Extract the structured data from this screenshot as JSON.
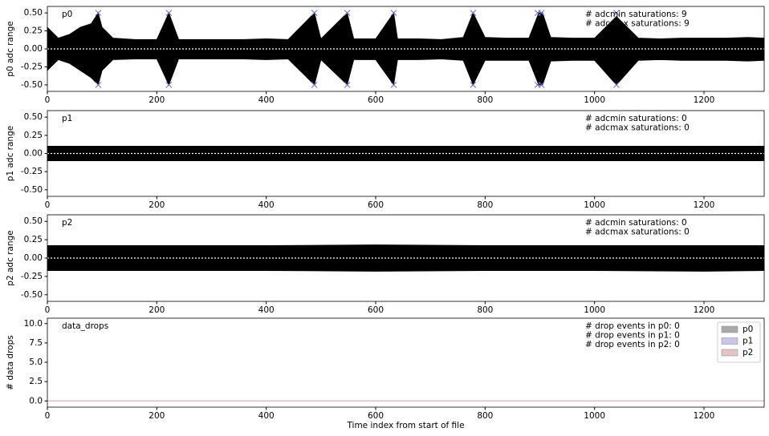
{
  "chart_data": [
    {
      "type": "band",
      "label": "p0",
      "ylabel": "p0 adc range",
      "annotations": [
        "# adcmin saturations: 9",
        "# adcmax saturations: 9"
      ],
      "xlim": [
        0,
        1310
      ],
      "xticks": [
        0,
        200,
        400,
        600,
        800,
        1000,
        1200
      ],
      "ylim": [
        -0.59,
        0.59
      ],
      "yticks": [
        {
          "value": -0.5,
          "label": "-0.50"
        },
        {
          "value": -0.25,
          "label": "-0.25"
        },
        {
          "value": 0,
          "label": "0.00"
        },
        {
          "value": 0.25,
          "label": "0.25"
        },
        {
          "value": 0.5,
          "label": "0.50"
        }
      ],
      "zero_line": 0,
      "color": "#000000",
      "marker_color": "#6a6ac8",
      "x": [
        0,
        20,
        40,
        60,
        80,
        93,
        100,
        120,
        160,
        200,
        222,
        240,
        280,
        320,
        360,
        400,
        440,
        488,
        500,
        548,
        560,
        600,
        633,
        640,
        680,
        720,
        760,
        778,
        800,
        840,
        880,
        898,
        905,
        920,
        960,
        1000,
        1040,
        1080,
        1120,
        1160,
        1200,
        1240,
        1280,
        1310
      ],
      "upper": [
        0.3,
        0.15,
        0.2,
        0.3,
        0.35,
        0.5,
        0.3,
        0.15,
        0.13,
        0.13,
        0.5,
        0.13,
        0.13,
        0.13,
        0.13,
        0.14,
        0.13,
        0.5,
        0.14,
        0.5,
        0.14,
        0.14,
        0.5,
        0.14,
        0.14,
        0.13,
        0.16,
        0.5,
        0.16,
        0.15,
        0.15,
        0.5,
        0.5,
        0.16,
        0.15,
        0.15,
        0.45,
        0.15,
        0.14,
        0.15,
        0.15,
        0.15,
        0.16,
        0.15
      ],
      "lower": [
        -0.3,
        -0.15,
        -0.2,
        -0.3,
        -0.4,
        -0.5,
        -0.3,
        -0.15,
        -0.14,
        -0.14,
        -0.5,
        -0.14,
        -0.14,
        -0.14,
        -0.14,
        -0.15,
        -0.14,
        -0.5,
        -0.15,
        -0.5,
        -0.15,
        -0.15,
        -0.5,
        -0.15,
        -0.15,
        -0.14,
        -0.16,
        -0.5,
        -0.16,
        -0.16,
        -0.16,
        -0.5,
        -0.5,
        -0.17,
        -0.16,
        -0.16,
        -0.5,
        -0.16,
        -0.15,
        -0.16,
        -0.16,
        -0.16,
        -0.17,
        -0.16
      ],
      "saturation_x": [
        93,
        222,
        488,
        548,
        633,
        778,
        896,
        903,
        1040
      ],
      "adcmax": [
        0.5,
        0.5,
        0.5,
        0.5,
        0.5,
        0.5,
        0.5,
        0.5,
        0.5
      ],
      "adcmin": [
        -0.5,
        -0.5,
        -0.5,
        -0.5,
        -0.5,
        -0.5,
        -0.5,
        -0.5,
        -0.5
      ]
    },
    {
      "type": "band",
      "label": "p1",
      "ylabel": "p1 adc range",
      "annotations": [
        "# adcmin saturations: 0",
        "# adcmax saturations: 0"
      ],
      "xlim": [
        0,
        1310
      ],
      "xticks": [
        0,
        200,
        400,
        600,
        800,
        1000,
        1200
      ],
      "ylim": [
        -0.59,
        0.59
      ],
      "yticks": [
        {
          "value": -0.5,
          "label": "-0.50"
        },
        {
          "value": -0.25,
          "label": "-0.25"
        },
        {
          "value": 0,
          "label": "0.00"
        },
        {
          "value": 0.25,
          "label": "0.25"
        },
        {
          "value": 0.5,
          "label": "0.50"
        }
      ],
      "zero_line": 0,
      "color": "#000000",
      "x": [
        0,
        200,
        400,
        600,
        800,
        1000,
        1200,
        1310
      ],
      "upper": [
        0.1,
        0.1,
        0.1,
        0.1,
        0.1,
        0.1,
        0.1,
        0.1
      ],
      "lower": [
        -0.1,
        -0.1,
        -0.1,
        -0.1,
        -0.1,
        -0.1,
        -0.1,
        -0.1
      ]
    },
    {
      "type": "band",
      "label": "p2",
      "ylabel": "p2 adc range",
      "annotations": [
        "# adcmin saturations: 0",
        "# adcmax saturations: 0"
      ],
      "xlim": [
        0,
        1310
      ],
      "xticks": [
        0,
        200,
        400,
        600,
        800,
        1000,
        1200
      ],
      "ylim": [
        -0.59,
        0.59
      ],
      "yticks": [
        {
          "value": -0.5,
          "label": "-0.50"
        },
        {
          "value": -0.25,
          "label": "-0.25"
        },
        {
          "value": 0,
          "label": "0.00"
        },
        {
          "value": 0.25,
          "label": "0.25"
        },
        {
          "value": 0.5,
          "label": "0.50"
        }
      ],
      "zero_line": 0,
      "color": "#000000",
      "x": [
        0,
        200,
        400,
        600,
        800,
        1000,
        1200,
        1310
      ],
      "upper": [
        0.17,
        0.17,
        0.17,
        0.18,
        0.17,
        0.17,
        0.17,
        0.17
      ],
      "lower": [
        -0.17,
        -0.17,
        -0.17,
        -0.18,
        -0.17,
        -0.17,
        -0.18,
        -0.17
      ]
    },
    {
      "type": "line",
      "label": "data_drops",
      "ylabel": "# data drops",
      "xlabel": "Time index from start of file",
      "annotations": [
        "# drop events in p0: 0",
        "# drop events in p1: 0",
        "# drop events in p2: 0"
      ],
      "xlim": [
        0,
        1310
      ],
      "xticks": [
        0,
        200,
        400,
        600,
        800,
        1000,
        1200
      ],
      "ylim": [
        -0.8,
        10.7
      ],
      "yticks": [
        {
          "value": 0,
          "label": "0.0"
        },
        {
          "value": 2.5,
          "label": "2.5"
        },
        {
          "value": 5,
          "label": "5.0"
        },
        {
          "value": 7.5,
          "label": "7.5"
        },
        {
          "value": 10,
          "label": "10.0"
        }
      ],
      "legend": "upper right",
      "x": [
        0,
        1310
      ],
      "series": [
        {
          "name": "p0",
          "color": "#aaaaaa",
          "values": [
            0,
            0
          ]
        },
        {
          "name": "p1",
          "color": "#c6c6e8",
          "values": [
            0,
            0
          ]
        },
        {
          "name": "p2",
          "color": "#e2c4c4",
          "values": [
            0,
            0
          ]
        }
      ]
    }
  ]
}
